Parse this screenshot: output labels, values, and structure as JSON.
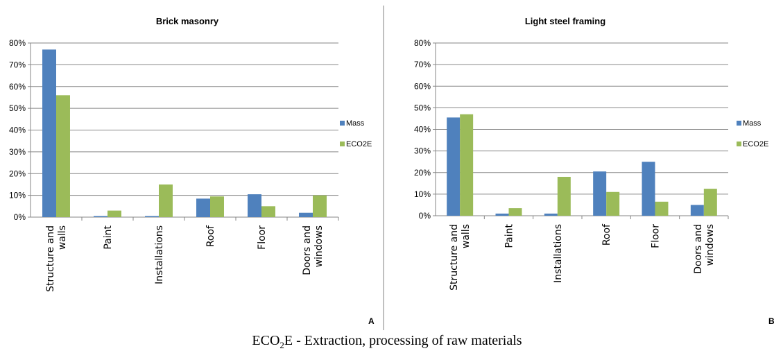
{
  "caption": {
    "prefix": "ECO",
    "sub": "2",
    "suffix": "E - Extraction, processing of raw materials"
  },
  "colors": {
    "mass": "#4F81BD",
    "eco2e": "#9BBB59",
    "grid": "#868686",
    "axis": "#868686",
    "divider": "#808080"
  },
  "chart_data": [
    {
      "type": "bar",
      "title": "Brick masonry",
      "corner_label": "A",
      "categories": [
        "Structure and walls",
        "Paint",
        "Installations",
        "Roof",
        "Floor",
        "Doors and windows"
      ],
      "series": [
        {
          "name": "Mass",
          "values": [
            77,
            0.5,
            0.5,
            8.5,
            10.5,
            2
          ]
        },
        {
          "name": "ECO2E",
          "values": [
            56,
            3,
            15,
            9.5,
            5,
            10
          ]
        }
      ],
      "ylim": [
        0,
        80
      ],
      "yticks": [
        "0%",
        "10%",
        "20%",
        "30%",
        "40%",
        "50%",
        "60%",
        "70%",
        "80%"
      ],
      "grid": true,
      "legend": "right"
    },
    {
      "type": "bar",
      "title": "Light steel framing",
      "corner_label": "B",
      "categories": [
        "Structure and walls",
        "Paint",
        "Installations",
        "Roof",
        "Floor",
        "Doors and windows"
      ],
      "series": [
        {
          "name": "Mass",
          "values": [
            45.5,
            1,
            1,
            20.5,
            25,
            5
          ]
        },
        {
          "name": "ECO2E",
          "values": [
            47,
            3.5,
            18,
            11,
            6.5,
            12.5
          ]
        }
      ],
      "ylim": [
        0,
        80
      ],
      "yticks": [
        "0%",
        "10%",
        "20%",
        "30%",
        "40%",
        "50%",
        "60%",
        "70%",
        "80%"
      ],
      "grid": true,
      "legend": "right"
    }
  ]
}
